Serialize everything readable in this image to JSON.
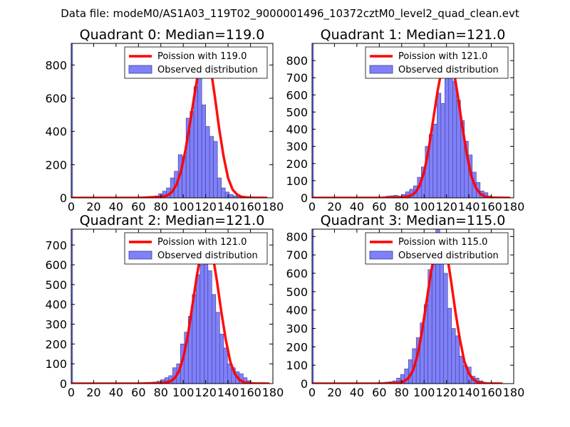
{
  "figure": {
    "suptitle": "Data file: modeM0/AS1A03_119T02_9000001496_10372cztM0_level2_quad_clean.evt"
  },
  "style": {
    "bar_fill": "#8080f8",
    "bar_edge": "#3a3a9a",
    "curve_color": "#ff0000",
    "axes_color": "#000000",
    "background": "#ffffff"
  },
  "chart_data": [
    {
      "type": "bar",
      "title": "Quadrant 0: Median=119.0",
      "xlim": [
        0,
        180
      ],
      "ylim": [
        0,
        930
      ],
      "xticks": [
        0,
        20,
        40,
        60,
        80,
        100,
        120,
        140,
        160,
        180
      ],
      "yticks": [
        0,
        200,
        400,
        600,
        800
      ],
      "legend_position": "top-right",
      "series": [
        {
          "name": "Poission with 119.0",
          "kind": "line",
          "x": [
            0,
            60,
            80,
            86,
            90,
            94,
            98,
            102,
            106,
            110,
            114,
            118,
            119,
            120,
            124,
            128,
            132,
            136,
            140,
            144,
            148,
            152,
            160,
            175
          ],
          "y": [
            0,
            0,
            5,
            15,
            35,
            80,
            160,
            290,
            450,
            620,
            780,
            885,
            890,
            885,
            800,
            620,
            420,
            250,
            120,
            50,
            20,
            6,
            1,
            0
          ]
        },
        {
          "name": "Observed distribution",
          "kind": "hist",
          "bin_start": 64,
          "bin_width": 3.5,
          "counts": [
            5,
            8,
            10,
            12,
            25,
            40,
            60,
            120,
            160,
            260,
            250,
            480,
            520,
            670,
            840,
            560,
            430,
            370,
            340,
            120,
            60,
            35,
            20,
            12,
            8,
            5
          ],
          "extra_bars": [
            {
              "x0": 0,
              "x1": 1.2,
              "count": 930
            }
          ]
        }
      ]
    },
    {
      "type": "bar",
      "title": "Quadrant 1: Median=121.0",
      "xlim": [
        0,
        180
      ],
      "ylim": [
        0,
        900
      ],
      "xticks": [
        0,
        20,
        40,
        60,
        80,
        100,
        120,
        140,
        160,
        180
      ],
      "yticks": [
        0,
        100,
        200,
        300,
        400,
        500,
        600,
        700,
        800
      ],
      "legend_position": "top-right",
      "series": [
        {
          "name": "Poission with 121.0",
          "kind": "line",
          "x": [
            0,
            60,
            80,
            88,
            92,
            96,
            100,
            104,
            108,
            112,
            116,
            120,
            121,
            122,
            126,
            130,
            134,
            138,
            142,
            146,
            150,
            154,
            162,
            177
          ],
          "y": [
            0,
            0,
            3,
            12,
            30,
            70,
            150,
            280,
            450,
            620,
            760,
            850,
            860,
            850,
            760,
            600,
            420,
            260,
            130,
            60,
            25,
            8,
            1,
            0
          ]
        },
        {
          "name": "Observed distribution",
          "kind": "hist",
          "bin_start": 66,
          "bin_width": 3.5,
          "counts": [
            10,
            12,
            15,
            10,
            20,
            35,
            50,
            70,
            120,
            180,
            300,
            370,
            430,
            610,
            550,
            820,
            730,
            680,
            570,
            450,
            330,
            250,
            150,
            90,
            40,
            30,
            10,
            5
          ],
          "extra_bars": [
            {
              "x0": 0,
              "x1": 1.2,
              "count": 900
            }
          ]
        }
      ]
    },
    {
      "type": "bar",
      "title": "Quadrant 2: Median=121.0",
      "xlim": [
        0,
        180
      ],
      "ylim": [
        0,
        780
      ],
      "xticks": [
        0,
        20,
        40,
        60,
        80,
        100,
        120,
        140,
        160,
        180
      ],
      "yticks": [
        0,
        100,
        200,
        300,
        400,
        500,
        600,
        700
      ],
      "legend_position": "top-right",
      "series": [
        {
          "name": "Poission with 121.0",
          "kind": "line",
          "x": [
            0,
            60,
            80,
            88,
            92,
            96,
            100,
            104,
            108,
            112,
            116,
            120,
            121,
            122,
            126,
            130,
            134,
            138,
            142,
            146,
            150,
            154,
            162,
            177
          ],
          "y": [
            0,
            0,
            3,
            10,
            25,
            60,
            130,
            240,
            390,
            540,
            670,
            740,
            750,
            740,
            660,
            520,
            360,
            220,
            110,
            50,
            20,
            6,
            1,
            0
          ]
        },
        {
          "name": "Observed distribution",
          "kind": "hist",
          "bin_start": 66,
          "bin_width": 3.5,
          "counts": [
            5,
            5,
            8,
            12,
            20,
            30,
            40,
            80,
            100,
            200,
            260,
            340,
            450,
            550,
            600,
            720,
            570,
            450,
            360,
            250,
            180,
            100,
            80,
            60,
            50,
            30,
            15,
            5
          ],
          "extra_bars": [
            {
              "x0": 0,
              "x1": 1.2,
              "count": 780
            }
          ]
        }
      ]
    },
    {
      "type": "bar",
      "title": "Quadrant 3: Median=115.0",
      "xlim": [
        0,
        180
      ],
      "ylim": [
        0,
        840
      ],
      "xticks": [
        0,
        20,
        40,
        60,
        80,
        100,
        120,
        140,
        160,
        180
      ],
      "yticks": [
        0,
        100,
        200,
        300,
        400,
        500,
        600,
        700,
        800
      ],
      "legend_position": "top-right",
      "series": [
        {
          "name": "Poission with 115.0",
          "kind": "line",
          "x": [
            0,
            60,
            76,
            82,
            86,
            90,
            94,
            98,
            102,
            106,
            110,
            114,
            115,
            116,
            120,
            124,
            128,
            132,
            136,
            140,
            144,
            148,
            156,
            170
          ],
          "y": [
            0,
            0,
            3,
            12,
            30,
            70,
            150,
            280,
            440,
            600,
            730,
            800,
            805,
            800,
            720,
            560,
            390,
            240,
            120,
            55,
            22,
            7,
            1,
            0
          ]
        },
        {
          "name": "Observed distribution",
          "kind": "hist",
          "bin_start": 58,
          "bin_width": 3.5,
          "counts": [
            5,
            5,
            8,
            10,
            15,
            30,
            50,
            80,
            130,
            190,
            250,
            330,
            430,
            620,
            740,
            860,
            780,
            600,
            410,
            300,
            260,
            150,
            100,
            90,
            40,
            30,
            15,
            5
          ],
          "extra_bars": [
            {
              "x0": 0,
              "x1": 1.2,
              "count": 840
            }
          ]
        }
      ]
    }
  ]
}
